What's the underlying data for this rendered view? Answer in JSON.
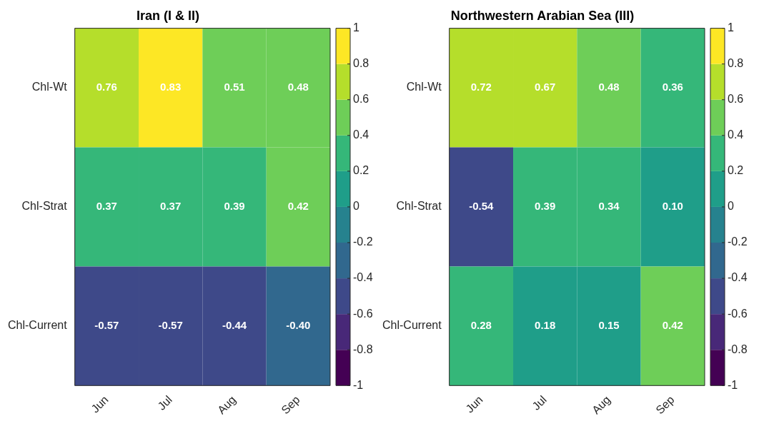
{
  "chart_data": [
    {
      "type": "heatmap",
      "title": "Iran (I & II)",
      "categories": [
        "Jun",
        "Jul",
        "Aug",
        "Sep"
      ],
      "y_categories": [
        "Chl-Wt",
        "Chl-Strat",
        "Chl-Current"
      ],
      "cells": [
        [
          0.76,
          0.83,
          0.51,
          0.48
        ],
        [
          0.37,
          0.37,
          0.39,
          0.42
        ],
        [
          -0.57,
          -0.57,
          -0.44,
          -0.4
        ]
      ],
      "cell_labels": [
        [
          "0.76",
          "0.83",
          "0.51",
          "0.48"
        ],
        [
          "0.37",
          "0.37",
          "0.39",
          "0.42"
        ],
        [
          "-0.57",
          "-0.57",
          "-0.44",
          "-0.40"
        ]
      ],
      "clim": [
        -1,
        1
      ],
      "cticks": [
        -1,
        -0.8,
        -0.6,
        -0.4,
        -0.2,
        0,
        0.2,
        0.4,
        0.6,
        0.8,
        1
      ]
    },
    {
      "type": "heatmap",
      "title": "Northwestern Arabian Sea (III)",
      "categories": [
        "Jun",
        "Jul",
        "Aug",
        "Sep"
      ],
      "y_categories": [
        "Chl-Wt",
        "Chl-Strat",
        "Chl-Current"
      ],
      "cells": [
        [
          0.72,
          0.67,
          0.48,
          0.36
        ],
        [
          -0.54,
          0.39,
          0.34,
          0.1
        ],
        [
          0.28,
          0.18,
          0.15,
          0.42
        ]
      ],
      "cell_labels": [
        [
          "0.72",
          "0.67",
          "0.48",
          "0.36"
        ],
        [
          "-0.54",
          "0.39",
          "0.34",
          "0.10"
        ],
        [
          "0.28",
          "0.18",
          "0.15",
          "0.42"
        ]
      ],
      "clim": [
        -1,
        1
      ],
      "cticks": [
        -1,
        -0.8,
        -0.6,
        -0.4,
        -0.2,
        0,
        0.2,
        0.4,
        0.6,
        0.8,
        1
      ]
    }
  ]
}
